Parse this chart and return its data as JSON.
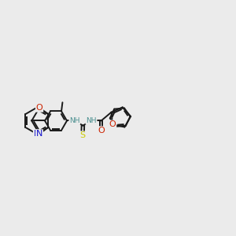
{
  "bg": "#ebebeb",
  "bond_color": "#1a1a1a",
  "lw": 1.4,
  "fs": 6.5,
  "colors": {
    "N": "#1010cc",
    "O": "#cc2200",
    "S": "#cccc00",
    "NH": "#4a8f8f",
    "C": "#1a1a1a"
  },
  "xlim": [
    0,
    8.5
  ],
  "ylim": [
    1.5,
    6.0
  ]
}
